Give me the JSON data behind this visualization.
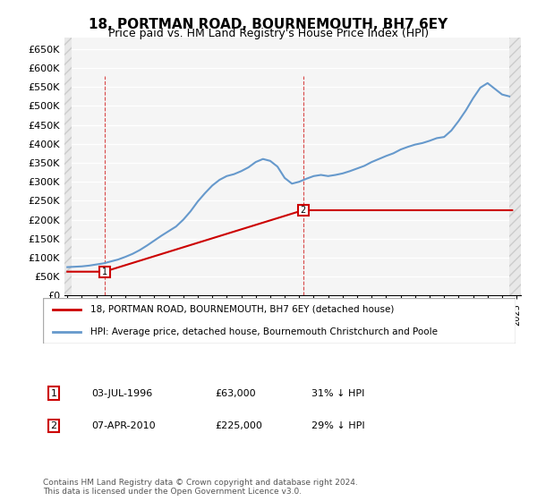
{
  "title": "18, PORTMAN ROAD, BOURNEMOUTH, BH7 6EY",
  "subtitle": "Price paid vs. HM Land Registry's House Price Index (HPI)",
  "legend_line1": "18, PORTMAN ROAD, BOURNEMOUTH, BH7 6EY (detached house)",
  "legend_line2": "HPI: Average price, detached house, Bournemouth Christchurch and Poole",
  "price_color": "#cc0000",
  "hpi_color": "#6699cc",
  "annotation1_label": "1",
  "annotation1_date": "03-JUL-1996",
  "annotation1_price": 63000,
  "annotation1_text": "03-JUL-1996     £63,000     31% ↓ HPI",
  "annotation2_label": "2",
  "annotation2_date": "07-APR-2010",
  "annotation2_price": 225000,
  "annotation2_text": "07-APR-2010     £225,000     29% ↓ HPI",
  "ylim": [
    0,
    680000
  ],
  "yticks": [
    0,
    50000,
    100000,
    150000,
    200000,
    250000,
    300000,
    350000,
    400000,
    450000,
    500000,
    550000,
    600000,
    650000
  ],
  "footer": "Contains HM Land Registry data © Crown copyright and database right 2024.\nThis data is licensed under the Open Government Licence v3.0.",
  "background_color": "#ffffff",
  "plot_bg_color": "#f5f5f5",
  "grid_color": "#ffffff",
  "hatch_color": "#e0e0e0"
}
